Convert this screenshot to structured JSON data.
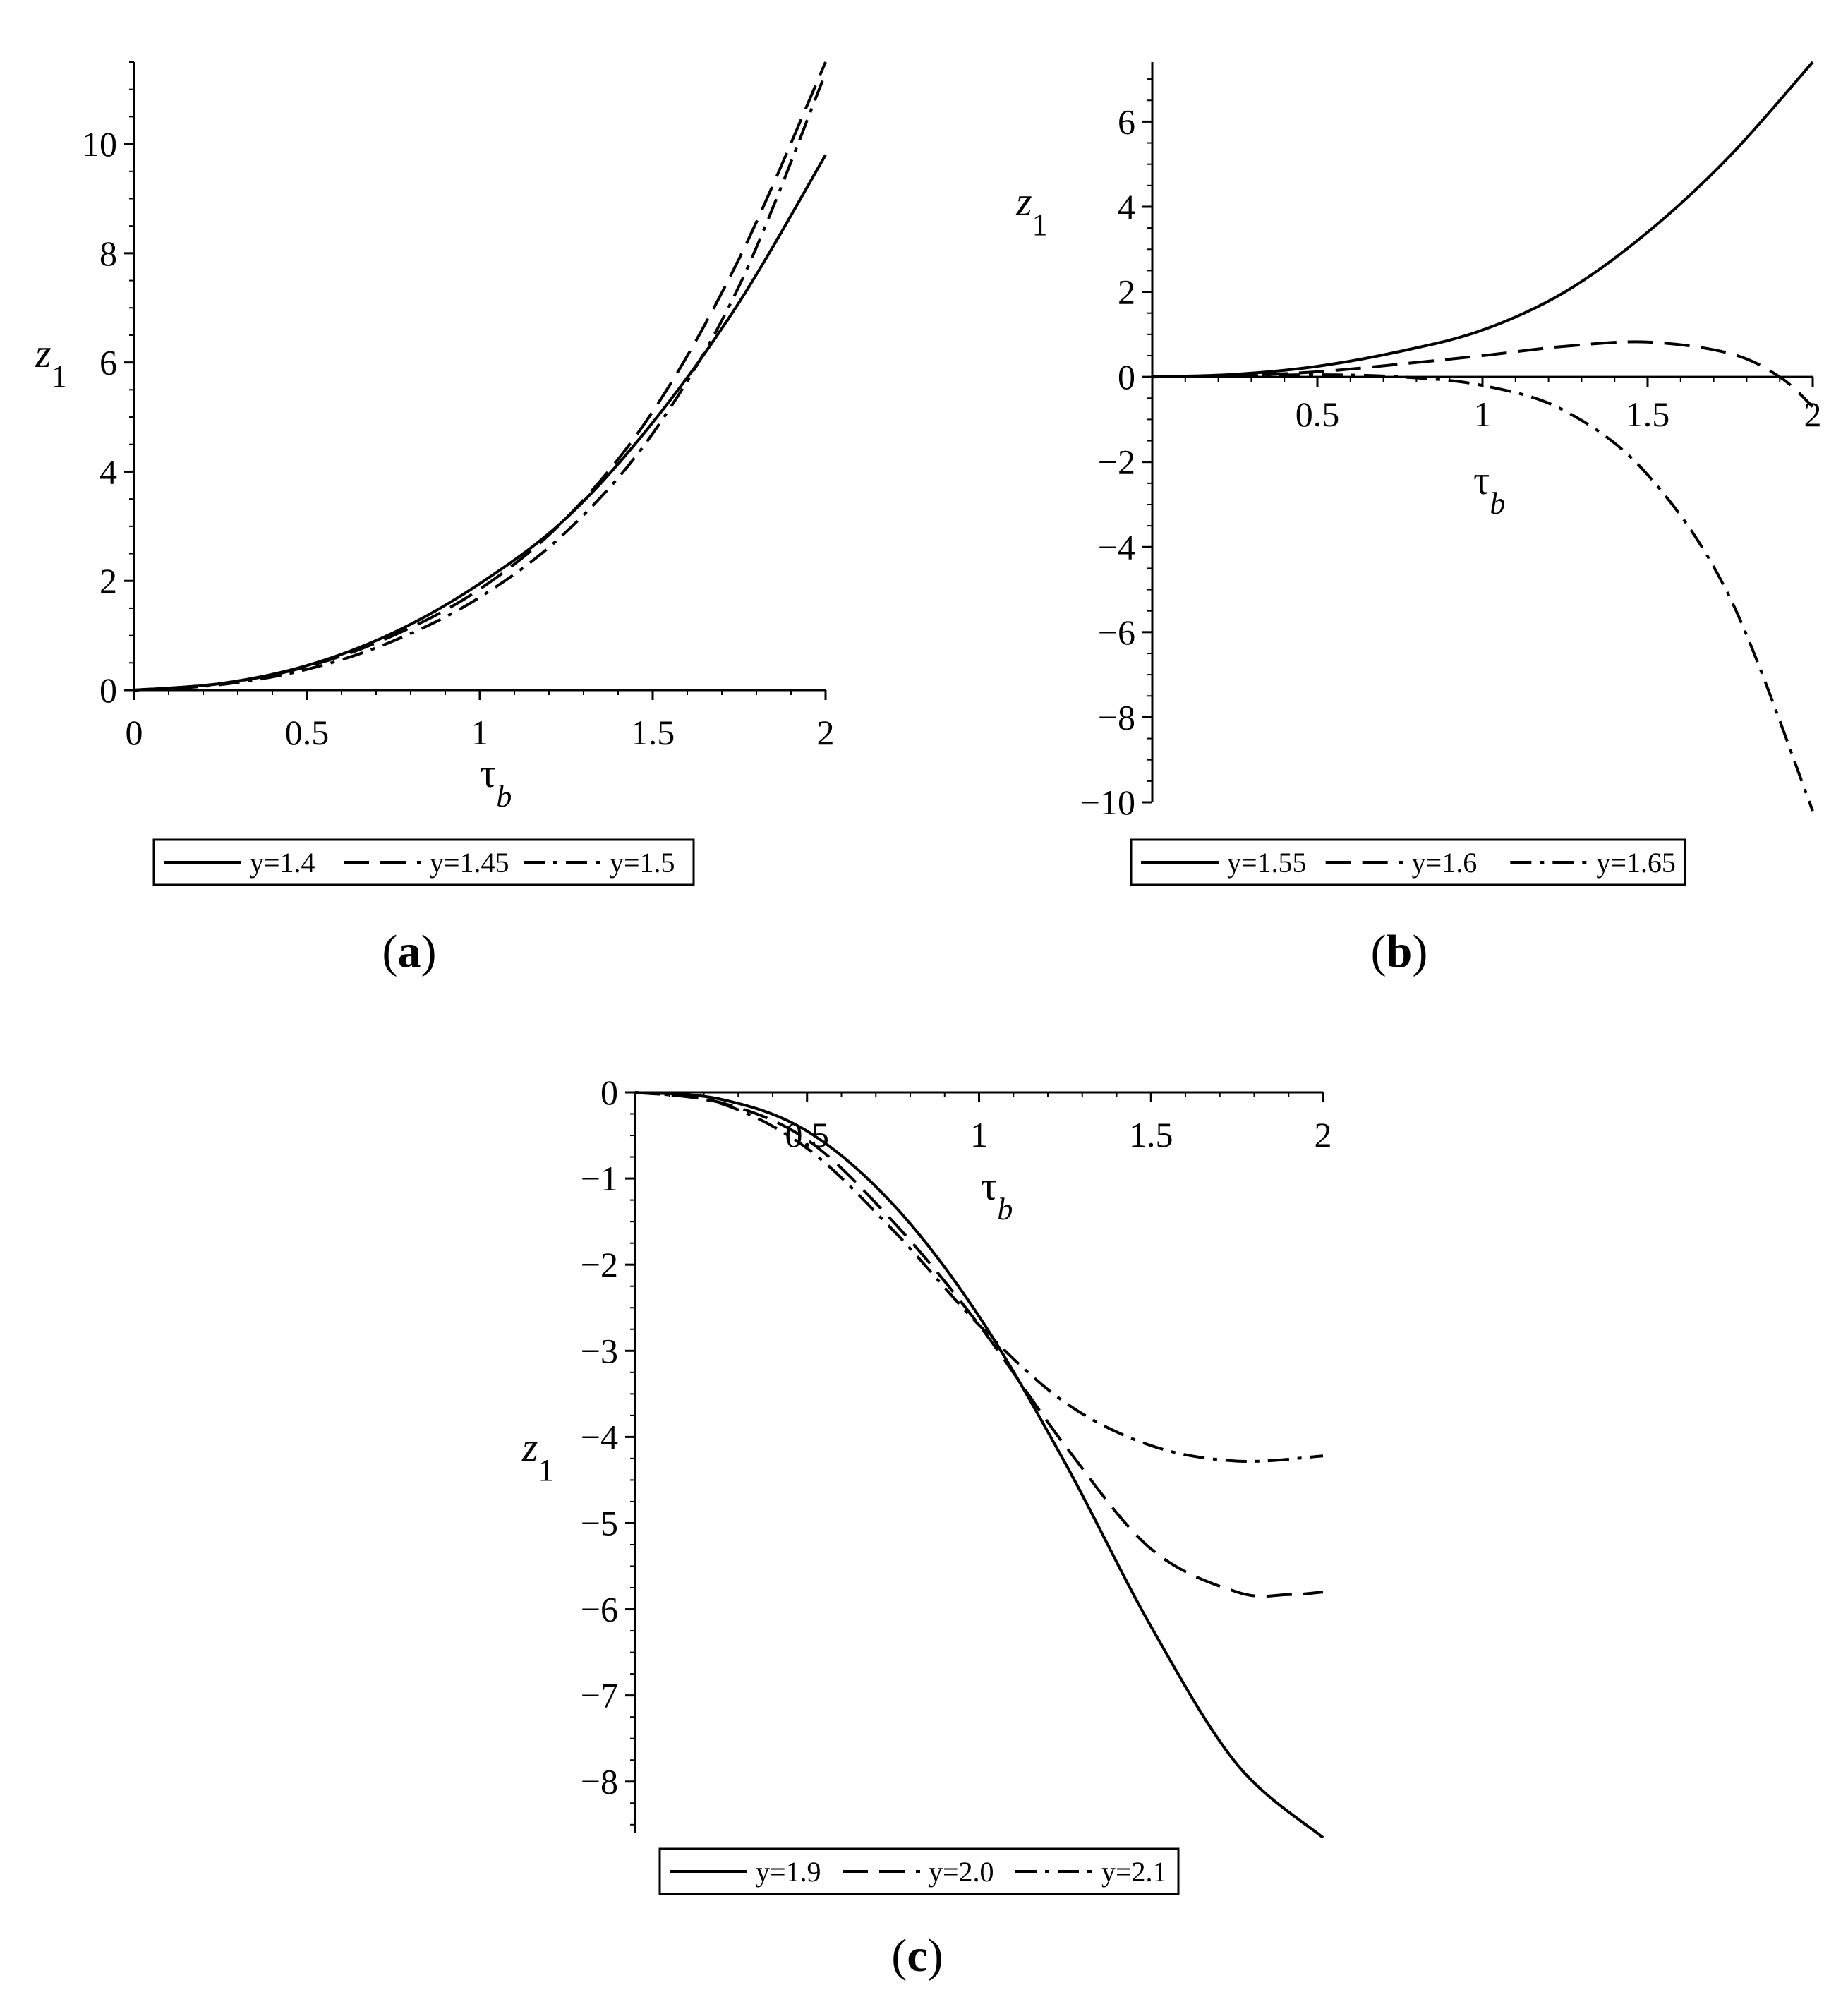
{
  "figure": {
    "panels": [
      {
        "id": "a",
        "label": "a"
      },
      {
        "id": "b",
        "label": "b"
      },
      {
        "id": "c",
        "label": "c"
      }
    ]
  },
  "chart_data": [
    {
      "id": "a",
      "type": "line",
      "xlabel": "τ",
      "xlabel_sub": "b",
      "ylabel": "z",
      "ylabel_sub": "1",
      "xlim": [
        0,
        2
      ],
      "ylim": [
        0,
        11.5
      ],
      "xticks": [
        0,
        0.5,
        1,
        1.5,
        2
      ],
      "xtick_labels": [
        "0",
        "0.5",
        "1",
        "1.5",
        "2"
      ],
      "yticks": [
        0,
        2,
        4,
        6,
        8,
        10
      ],
      "ytick_labels": [
        "0",
        "2",
        "4",
        "6",
        "8",
        "10"
      ],
      "grid": false,
      "legend_position": "bottom",
      "series": [
        {
          "name": "y=1.4",
          "style": "solid",
          "x": [
            0,
            0.25,
            0.5,
            0.75,
            1.0,
            1.25,
            1.5,
            1.75,
            2.0
          ],
          "y": [
            0,
            0.12,
            0.45,
            1.05,
            1.95,
            3.15,
            4.9,
            7.1,
            9.8
          ]
        },
        {
          "name": "y=1.45",
          "style": "dash",
          "x": [
            0,
            0.25,
            0.5,
            0.75,
            1.0,
            1.25,
            1.5,
            1.75,
            2.0
          ],
          "y": [
            0,
            0.12,
            0.43,
            1.0,
            1.85,
            3.15,
            5.1,
            7.9,
            11.5
          ]
        },
        {
          "name": "y=1.5",
          "style": "dashdot",
          "x": [
            0,
            0.25,
            0.5,
            0.75,
            1.0,
            1.25,
            1.5,
            1.75,
            2.0
          ],
          "y": [
            0,
            0.1,
            0.38,
            0.9,
            1.7,
            2.9,
            4.7,
            7.4,
            11.3
          ]
        }
      ]
    },
    {
      "id": "b",
      "type": "line",
      "xlabel": "τ",
      "xlabel_sub": "b",
      "ylabel": "z",
      "ylabel_sub": "1",
      "xlim": [
        0,
        2
      ],
      "ylim": [
        -10,
        7.4
      ],
      "xticks": [
        0.5,
        1,
        1.5,
        2
      ],
      "xtick_labels": [
        "0.5",
        "1",
        "1.5",
        "2"
      ],
      "yticks": [
        -10,
        -8,
        -6,
        -4,
        -2,
        0,
        2,
        4,
        6
      ],
      "ytick_labels": [
        "−10",
        "−8",
        "−6",
        "−4",
        "−2",
        "0",
        "2",
        "4",
        "6"
      ],
      "grid": false,
      "legend_position": "bottom",
      "series": [
        {
          "name": "y=1.55",
          "style": "solid",
          "x": [
            0,
            0.25,
            0.5,
            0.75,
            1.0,
            1.25,
            1.5,
            1.75,
            2.0
          ],
          "y": [
            0,
            0.06,
            0.25,
            0.6,
            1.1,
            2.0,
            3.4,
            5.2,
            7.4
          ]
        },
        {
          "name": "y=1.6",
          "style": "dash",
          "x": [
            0,
            0.25,
            0.5,
            0.75,
            1.0,
            1.25,
            1.5,
            1.75,
            1.9,
            2.0
          ],
          "y": [
            0,
            0.03,
            0.12,
            0.3,
            0.5,
            0.72,
            0.82,
            0.55,
            0.0,
            -0.7
          ]
        },
        {
          "name": "y=1.65",
          "style": "dashdot",
          "x": [
            0,
            0.25,
            0.5,
            0.75,
            1.0,
            1.25,
            1.5,
            1.75,
            2.0
          ],
          "y": [
            0,
            0.02,
            0.05,
            0.0,
            -0.2,
            -0.8,
            -2.3,
            -5.2,
            -10.2
          ]
        }
      ]
    },
    {
      "id": "c",
      "type": "line",
      "xlabel": "τ",
      "xlabel_sub": "b",
      "ylabel": "z",
      "ylabel_sub": "1",
      "xlim": [
        0,
        2
      ],
      "ylim": [
        -8.6,
        0
      ],
      "xticks": [
        0.5,
        1,
        1.5,
        2
      ],
      "xtick_labels": [
        "0.5",
        "1",
        "1.5",
        "2"
      ],
      "yticks": [
        0,
        -1,
        -2,
        -3,
        -4,
        -5,
        -6,
        -7,
        -8
      ],
      "ytick_labels": [
        "0",
        "−1",
        "−2",
        "−3",
        "−4",
        "−5",
        "−6",
        "−7",
        "−8"
      ],
      "grid": false,
      "legend_position": "bottom",
      "series": [
        {
          "name": "y=1.9",
          "style": "solid",
          "x": [
            0,
            0.25,
            0.5,
            0.75,
            1.0,
            1.25,
            1.5,
            1.75,
            2.0
          ],
          "y": [
            0,
            -0.08,
            -0.45,
            -1.3,
            -2.6,
            -4.3,
            -6.2,
            -7.8,
            -8.65
          ]
        },
        {
          "name": "y=2.0",
          "style": "dash",
          "x": [
            0,
            0.25,
            0.5,
            0.75,
            1.0,
            1.25,
            1.5,
            1.75,
            1.9,
            2.0
          ],
          "y": [
            0,
            -0.12,
            -0.55,
            -1.5,
            -2.7,
            -4.1,
            -5.3,
            -5.8,
            -5.83,
            -5.8
          ]
        },
        {
          "name": "y=2.1",
          "style": "dashdot",
          "x": [
            0,
            0.25,
            0.5,
            0.75,
            1.0,
            1.25,
            1.5,
            1.75,
            2.0
          ],
          "y": [
            0,
            -0.13,
            -0.65,
            -1.6,
            -2.7,
            -3.6,
            -4.1,
            -4.28,
            -4.22
          ]
        }
      ]
    }
  ]
}
